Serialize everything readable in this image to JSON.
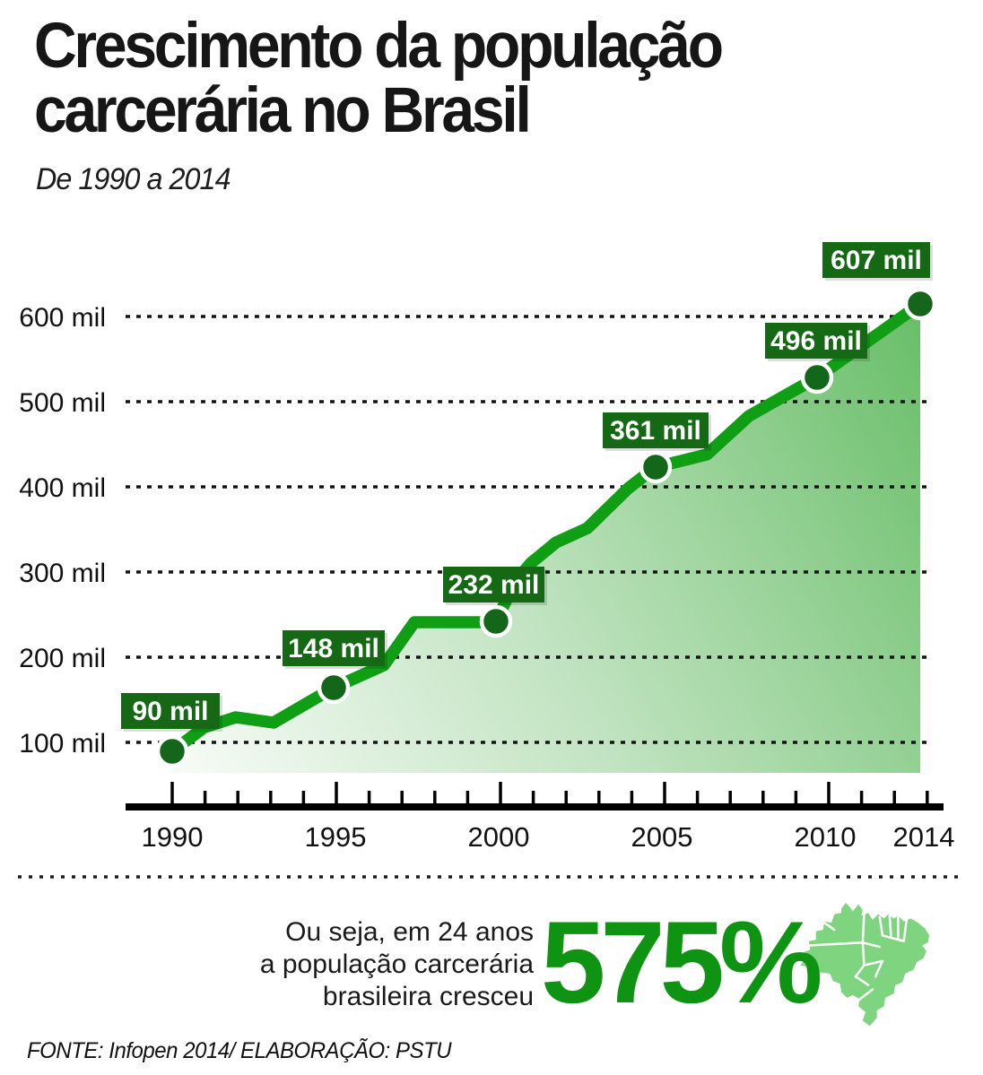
{
  "header": {
    "title_line1": "Crescimento da população",
    "title_line2": "carcerária no Brasil",
    "subtitle": "De 1990 a 2014"
  },
  "chart_data": {
    "type": "line",
    "title": "Crescimento da população carcerária no Brasil",
    "subtitle": "De 1990 a 2014",
    "unit": "mil (thousands of prisoners)",
    "x": [
      1990,
      1995,
      2000,
      2005,
      2010,
      2014
    ],
    "values": [
      90,
      148,
      232,
      361,
      496,
      607
    ],
    "point_labels": [
      "90 mil",
      "148 mil",
      "232 mil",
      "361 mil",
      "496 mil",
      "607 mil"
    ],
    "y_ticks": [
      "600 mil",
      "500 mil",
      "400 mil",
      "300 mil",
      "200 mil",
      "100 mil"
    ],
    "x_ticks": [
      "1990",
      "1995",
      "2000",
      "2005",
      "2010",
      "2014"
    ],
    "ylim": [
      0,
      650
    ],
    "grid": "horizontal dotted lines",
    "legend": "none",
    "area": true,
    "colors": {
      "line": "#0f9e14",
      "point": "#14661a",
      "label_box": "#156915",
      "label_text": "#ffffff",
      "area_gradient_start": "#fdfefd",
      "area_gradient_end": "#68be68",
      "axis": "#000000"
    }
  },
  "annotation": {
    "line1": "Ou seja, em 24 anos",
    "line2": "a população carcerária",
    "line3": "brasileira cresceu",
    "big_number": "575%",
    "big_number_color": "#0e9412",
    "map_icon": "brazil-map-icon",
    "map_color": "#7fd47f"
  },
  "footer": {
    "source": "FONTE: Infopen 2014/ ELABORAÇÃO: PSTU"
  }
}
